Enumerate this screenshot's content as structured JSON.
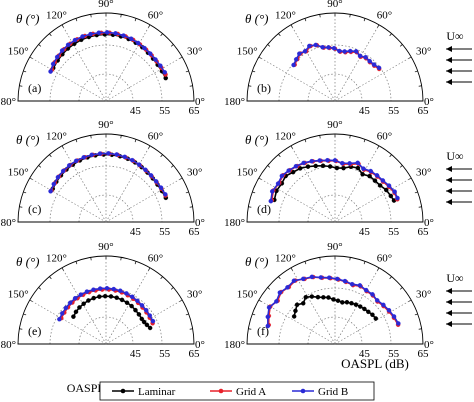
{
  "colors": {
    "Laminar": "#000000",
    "Grid A": "#e8202a",
    "Grid B": "#2a2ad6",
    "grid": "#777777"
  },
  "theta_label": "θ (°)",
  "oaspl_label": "OASPL (dB)",
  "flow_label": "U∞",
  "legend": [
    "Laminar",
    "Grid A",
    "Grid B"
  ],
  "chart_data": [
    {
      "type": "scatter",
      "panel": "(a)",
      "polar": true,
      "angle_ticks": [
        "180°",
        "150°",
        "120°",
        "90°",
        "60°",
        "30°",
        "0°"
      ],
      "r_ticks": [
        "45",
        "55",
        "65"
      ],
      "rlim": [
        35,
        65
      ],
      "series": [
        {
          "name": "Laminar",
          "theta": [
            148,
            140,
            133,
            126,
            119,
            112,
            105,
            98,
            91,
            84,
            77,
            70,
            63,
            56,
            49,
            42,
            35,
            28,
            21
          ],
          "r": [
            56.2,
            56.5,
            56.8,
            57.1,
            57.3,
            57.5,
            57.6,
            57.7,
            57.7,
            57.7,
            57.6,
            57.5,
            57.3,
            57.1,
            56.8,
            56.6,
            56.5,
            56.6,
            56.8
          ]
        },
        {
          "name": "Grid A",
          "theta": [
            150,
            143,
            136,
            129,
            122,
            115,
            108,
            101,
            94,
            87,
            80,
            73,
            66,
            59,
            52,
            45,
            38,
            31,
            24
          ],
          "r": [
            56.3,
            56.9,
            57.3,
            57.7,
            58.0,
            58.2,
            58.3,
            58.3,
            58.3,
            58.3,
            58.2,
            58.0,
            57.8,
            57.5,
            57.2,
            57.0,
            56.9,
            57.0,
            57.2
          ]
        },
        {
          "name": "Grid B",
          "theta": [
            152,
            145,
            138,
            131,
            124,
            117,
            110,
            103,
            96,
            89,
            82,
            75,
            68,
            61,
            54,
            47,
            40,
            33,
            26
          ],
          "r": [
            56.4,
            57.0,
            57.4,
            57.8,
            58.1,
            58.3,
            58.4,
            58.4,
            58.4,
            58.4,
            58.3,
            58.1,
            57.9,
            57.6,
            57.3,
            57.1,
            57.0,
            57.1,
            57.3
          ]
        }
      ]
    },
    {
      "type": "scatter",
      "panel": "(b)",
      "polar": true,
      "angle_ticks": [
        "180°",
        "150°",
        "120°",
        "90°",
        "60°",
        "30°",
        "0°"
      ],
      "r_ticks": [
        "45",
        "55",
        "65"
      ],
      "rlim": [
        35,
        65
      ],
      "series": [
        {
          "name": "Grid A",
          "theta": [
            138,
            132,
            126,
            120,
            114,
            108,
            102,
            96,
            90,
            84,
            78,
            72,
            66,
            60,
            54,
            48,
            42,
            36
          ],
          "r": [
            53.5,
            54.2,
            55.0,
            54.6,
            55.5,
            55.0,
            53.6,
            53.2,
            52.8,
            51.9,
            52.0,
            52.6,
            53.2,
            52.4,
            53.0,
            52.8,
            53.0,
            53.6
          ]
        },
        {
          "name": "Grid B",
          "theta": [
            139,
            133,
            127,
            121,
            115,
            109,
            103,
            97,
            91,
            85,
            79,
            73,
            67,
            61,
            55,
            49,
            43,
            37
          ],
          "r": [
            53.7,
            54.4,
            55.2,
            54.8,
            55.7,
            55.2,
            53.8,
            53.4,
            53.0,
            52.1,
            52.2,
            52.8,
            53.4,
            52.6,
            53.2,
            53.0,
            53.2,
            53.8
          ]
        }
      ]
    },
    {
      "type": "scatter",
      "panel": "(c)",
      "polar": true,
      "angle_ticks": [
        "180°",
        "150°",
        "120°",
        "90°",
        "60°",
        "30°",
        "0°"
      ],
      "r_ticks": [
        "45",
        "55",
        "65"
      ],
      "rlim": [
        35,
        65
      ],
      "series": [
        {
          "name": "Laminar",
          "theta": [
            148,
            141,
            134,
            127,
            120,
            113,
            106,
            99,
            92,
            85,
            78,
            71,
            64,
            57,
            50,
            43,
            36,
            29,
            22
          ],
          "r": [
            56.4,
            56.8,
            57.1,
            57.4,
            57.6,
            57.8,
            57.9,
            58.0,
            58.0,
            58.0,
            57.9,
            57.8,
            57.6,
            57.3,
            57.0,
            56.8,
            56.7,
            56.8,
            57.0
          ]
        },
        {
          "name": "Grid A",
          "theta": [
            150,
            143,
            136,
            129,
            122,
            115,
            108,
            101,
            94,
            87,
            80,
            73,
            66,
            59,
            52,
            45,
            38,
            31,
            24
          ],
          "r": [
            56.5,
            56.9,
            57.3,
            57.6,
            57.9,
            58.1,
            58.2,
            58.3,
            58.3,
            58.3,
            58.2,
            58.0,
            57.8,
            57.5,
            57.2,
            57.0,
            56.9,
            57.0,
            57.2
          ]
        },
        {
          "name": "Grid B",
          "theta": [
            151,
            144,
            137,
            130,
            123,
            116,
            109,
            102,
            95,
            88,
            81,
            74,
            67,
            60,
            53,
            46,
            39,
            32,
            25
          ],
          "r": [
            56.6,
            57.0,
            57.4,
            57.7,
            58.0,
            58.2,
            58.3,
            58.4,
            58.4,
            58.4,
            58.3,
            58.1,
            57.9,
            57.6,
            57.3,
            57.1,
            57.0,
            57.1,
            57.3
          ]
        }
      ]
    },
    {
      "type": "scatter",
      "panel": "(d)",
      "polar": true,
      "angle_ticks": [
        "180°",
        "150°",
        "120°",
        "90°",
        "60°",
        "30°",
        "0°"
      ],
      "r_ticks": [
        "45",
        "55",
        "65"
      ],
      "rlim": [
        35,
        65
      ],
      "series": [
        {
          "name": "Laminar",
          "theta": [
            160,
            152,
            144,
            137,
            130,
            123,
            116,
            109,
            102,
            95,
            88,
            81,
            74,
            67,
            60,
            53,
            46,
            39,
            32,
            25,
            20
          ],
          "r": [
            57.0,
            57.6,
            57.4,
            58.0,
            57.2,
            56.8,
            56.0,
            55.2,
            54.6,
            54.0,
            53.4,
            53.6,
            54.6,
            55.0,
            53.8,
            54.6,
            54.6,
            54.8,
            55.6,
            56.0,
            56.4
          ]
        },
        {
          "name": "Grid A",
          "theta": [
            161,
            153,
            145,
            138,
            131,
            124,
            117,
            110,
            103,
            96,
            89,
            82,
            75,
            68,
            61,
            54,
            47,
            40,
            33,
            26,
            20
          ],
          "r": [
            57.8,
            58.6,
            58.2,
            58.8,
            58.4,
            58.0,
            57.6,
            57.0,
            56.4,
            56.0,
            55.8,
            55.0,
            55.4,
            56.4,
            55.4,
            56.0,
            56.2,
            56.4,
            57.0,
            57.6,
            57.6
          ]
        },
        {
          "name": "Grid B",
          "theta": [
            162,
            154,
            146,
            139,
            132,
            125,
            118,
            111,
            104,
            97,
            90,
            83,
            76,
            69,
            62,
            55,
            48,
            41,
            34,
            27,
            21
          ],
          "r": [
            58.0,
            58.8,
            58.4,
            59.0,
            58.6,
            58.2,
            57.8,
            57.2,
            56.6,
            56.2,
            56.0,
            55.2,
            55.6,
            56.6,
            55.6,
            56.2,
            56.4,
            56.6,
            57.2,
            57.8,
            57.8
          ]
        }
      ]
    },
    {
      "type": "scatter",
      "panel": "(e)",
      "polar": true,
      "angle_ticks": [
        "180°",
        "150°",
        "120°",
        "90°",
        "60°",
        "30°",
        "0°"
      ],
      "r_ticks": [
        "45",
        "55",
        "65"
      ],
      "rlim": [
        35,
        65
      ],
      "series": [
        {
          "name": "Laminar",
          "theta": [
            140,
            133,
            126,
            119,
            112,
            105,
            98,
            91,
            84,
            77,
            70,
            63,
            56,
            49,
            42,
            35,
            30,
            25,
            20
          ],
          "r": [
            49.5,
            50.0,
            50.4,
            50.7,
            51.0,
            51.2,
            51.3,
            51.3,
            51.3,
            51.2,
            51.0,
            50.8,
            50.6,
            50.3,
            50.1,
            49.9,
            50.0,
            50.4,
            51.0
          ]
        },
        {
          "name": "Grid A",
          "theta": [
            150,
            143,
            136,
            129,
            122,
            115,
            108,
            101,
            94,
            87,
            80,
            73,
            66,
            59,
            52,
            45,
            38,
            31,
            24
          ],
          "r": [
            52.6,
            52.8,
            53.0,
            53.2,
            53.4,
            53.5,
            53.6,
            53.6,
            53.6,
            53.6,
            53.5,
            53.4,
            53.2,
            53.0,
            52.8,
            52.6,
            52.5,
            52.4,
            52.4
          ]
        },
        {
          "name": "Grid B",
          "theta": [
            152,
            145,
            138,
            131,
            124,
            117,
            110,
            103,
            96,
            89,
            82,
            75,
            68,
            61,
            54,
            47,
            40,
            33,
            26
          ],
          "r": [
            53.0,
            53.2,
            53.4,
            53.6,
            53.8,
            53.9,
            54.0,
            54.0,
            54.0,
            54.0,
            53.9,
            53.8,
            53.6,
            53.4,
            53.2,
            53.0,
            52.9,
            52.8,
            52.8
          ]
        }
      ]
    },
    {
      "type": "scatter",
      "panel": "(f)",
      "polar": true,
      "angle_ticks": [
        "180°",
        "150°",
        "120°",
        "90°",
        "60°",
        "30°",
        "0°"
      ],
      "r_ticks": [
        "45",
        "55",
        "65"
      ],
      "rlim": [
        35,
        65
      ],
      "series": [
        {
          "name": "Laminar",
          "theta": [
            146,
            140,
            134,
            128,
            122,
            116,
            110,
            104,
            98,
            92,
            86,
            80,
            74,
            68,
            62,
            56,
            50,
            44,
            38,
            32
          ],
          "r": [
            51.8,
            52.6,
            53.6,
            52.6,
            53.8,
            53.0,
            52.0,
            51.4,
            51.0,
            50.2,
            49.8,
            49.4,
            49.8,
            50.0,
            50.2,
            50.4,
            50.6,
            50.8,
            51.2,
            51.4
          ]
        },
        {
          "name": "Grid A",
          "theta": [
            164,
            157,
            150,
            143,
            136,
            129,
            122,
            115,
            108,
            101,
            94,
            87,
            80,
            73,
            66,
            59,
            52,
            45,
            38,
            31,
            24,
            17
          ],
          "r": [
            58.5,
            59.5,
            60.5,
            59.5,
            60.5,
            60.0,
            60.5,
            59.5,
            59.0,
            58.0,
            57.5,
            57.0,
            56.5,
            56.0,
            56.5,
            56.0,
            56.0,
            55.5,
            56.0,
            56.5,
            57.0,
            57.5
          ]
        },
        {
          "name": "Grid B",
          "theta": [
            165,
            158,
            151,
            144,
            137,
            130,
            123,
            116,
            109,
            102,
            95,
            88,
            81,
            74,
            67,
            60,
            53,
            46,
            39,
            32,
            25,
            18
          ],
          "r": [
            58.7,
            59.7,
            60.7,
            59.7,
            60.7,
            60.2,
            60.7,
            59.7,
            59.2,
            58.2,
            57.7,
            57.2,
            56.7,
            56.2,
            56.7,
            56.2,
            56.2,
            55.7,
            56.2,
            56.7,
            57.2,
            57.7
          ]
        }
      ]
    }
  ]
}
